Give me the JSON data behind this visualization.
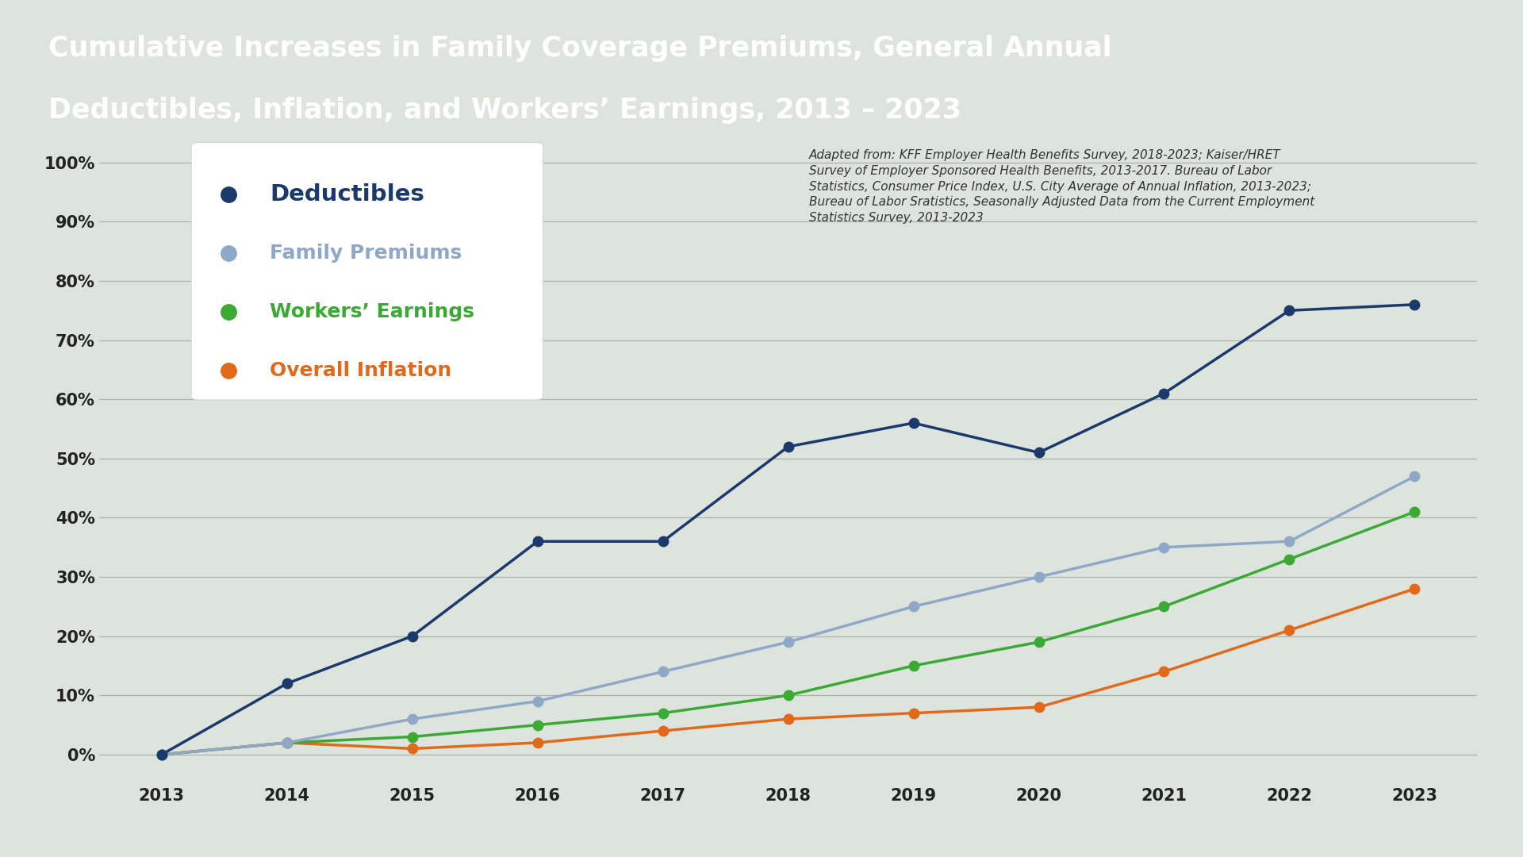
{
  "title_line1": "Cumulative Increases in Family Coverage Premiums, General Annual",
  "title_line2": "Deductibles, Inflation, and Workers’ Earnings, 2013 – 2023",
  "title_bg_color": "#1b3a6b",
  "title_text_color": "#ffffff",
  "bg_color": "#dde4dd",
  "plot_bg_color": "#dde4dd",
  "years": [
    2013,
    2014,
    2015,
    2016,
    2017,
    2018,
    2019,
    2020,
    2021,
    2022,
    2023
  ],
  "deductibles": [
    0,
    12,
    20,
    36,
    36,
    52,
    56,
    51,
    61,
    75,
    76
  ],
  "family_premiums": [
    0,
    2,
    6,
    9,
    14,
    19,
    25,
    30,
    35,
    36,
    47
  ],
  "workers_earnings": [
    0,
    2,
    3,
    5,
    7,
    10,
    15,
    19,
    25,
    33,
    41
  ],
  "overall_inflation": [
    0,
    2,
    1,
    2,
    4,
    6,
    7,
    8,
    14,
    21,
    28
  ],
  "deductibles_color": "#1b3a6b",
  "family_premiums_color": "#8fa8c8",
  "workers_earnings_color": "#3aaa35",
  "overall_inflation_color": "#e06a1a",
  "legend_labels": [
    "Deductibles",
    "Family Premiums",
    "Workers’ Earnings",
    "Overall Inflation"
  ],
  "annotation_text": "Adapted from: KFF Employer Health Benefits Survey, 2018-2023; Kaiser/HRET\nSurvey of Employer Sponsored Health Benefits, 2013-2017. Bureau of Labor\nStatistics, Consumer Price Index, U.S. City Average of Annual Inflation, 2013-2023;\nBureau of Labor Sratistics, Seasonally Adjusted Data from the Current Employment\nStatistics Survey, 2013-2023",
  "ylim": [
    -5,
    105
  ],
  "yticks": [
    0,
    10,
    20,
    30,
    40,
    50,
    60,
    70,
    80,
    90,
    100
  ],
  "marker_size": 9,
  "line_width": 2.5
}
